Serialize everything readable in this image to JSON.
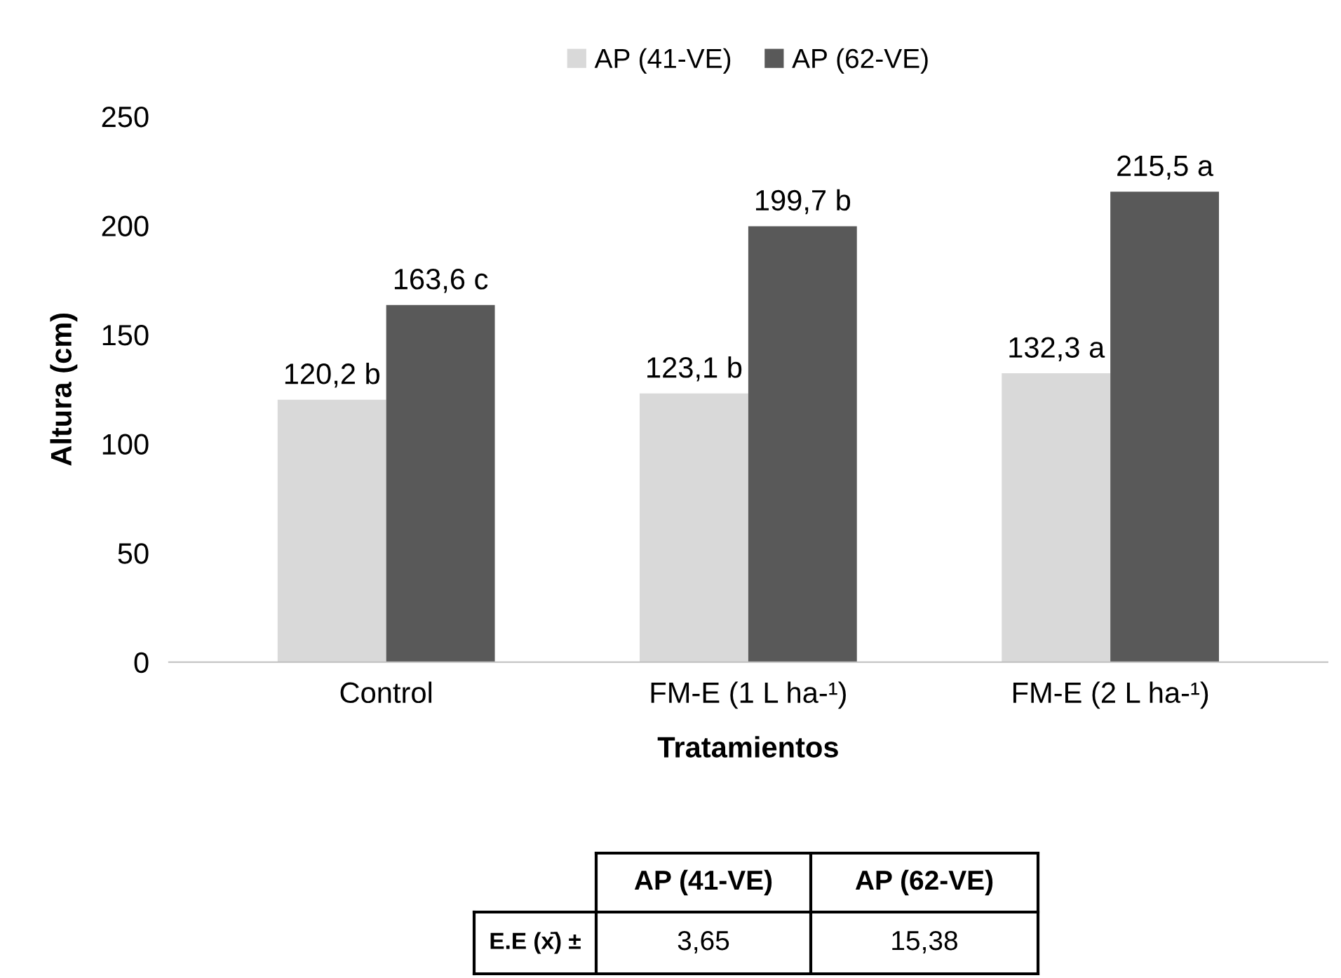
{
  "chart_data": {
    "type": "bar",
    "xlabel": "Tratamientos",
    "ylabel": "Altura (cm)",
    "categories": [
      "Control",
      "FM-E (1 L ha-¹)",
      "FM-E (2 L ha-¹)"
    ],
    "series": [
      {
        "name": "AP (41-VE)",
        "color": "#d9d9d9",
        "values": [
          120.2,
          123.1,
          132.3
        ],
        "value_labels": [
          "120,2 b",
          "123,1 b",
          "132,3 a"
        ]
      },
      {
        "name": "AP (62-VE)",
        "color": "#595959",
        "values": [
          163.6,
          199.7,
          215.5
        ],
        "value_labels": [
          "163,6 c",
          "199,7 b",
          "215,5 a"
        ]
      }
    ],
    "ylim": [
      0,
      250
    ],
    "yticks": [
      0,
      50,
      100,
      150,
      200,
      250
    ],
    "grid": false,
    "legend": "top",
    "annotations": [
      "AP (41-VE)",
      "AP (62-VE)",
      "E.E (x̄) ±",
      "3,65",
      "15,38"
    ]
  }
}
